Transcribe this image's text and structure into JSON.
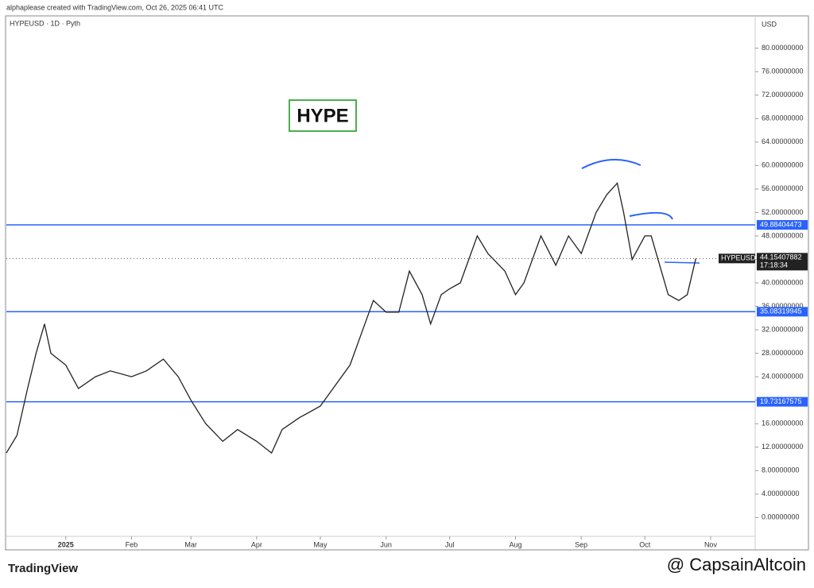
{
  "header": {
    "credit": "alphaplease created with TradingView.com, Oct 26, 2025 06:41 UTC",
    "brand": "TradingView",
    "watermark": "@ CapsainAltcoin"
  },
  "chart_data": {
    "type": "line",
    "title": "HYPEUSD · 1D · Pyth",
    "annotation": "HYPE",
    "y_unit": "USD",
    "x": [
      -28,
      -23,
      -18,
      -14,
      -10,
      -7,
      0,
      6,
      14,
      21,
      31,
      38,
      46,
      53,
      59,
      66,
      74,
      81,
      90,
      97,
      102,
      110,
      120,
      126,
      134,
      141,
      145,
      151,
      157,
      162,
      168,
      172,
      177,
      181,
      186,
      194,
      199,
      207,
      212,
      216,
      224,
      231,
      237,
      243,
      250,
      255,
      260,
      263,
      267,
      273,
      276,
      280,
      284,
      289,
      293,
      297
    ],
    "series": [
      {
        "name": "HYPEUSD",
        "color": "#222222",
        "values": [
          11,
          14,
          22,
          28,
          33,
          28,
          26,
          22,
          24,
          25,
          24,
          25,
          27,
          24,
          20,
          16,
          13,
          15,
          13,
          11,
          15,
          17,
          19,
          22,
          26,
          33,
          37,
          35,
          35,
          42,
          38,
          33,
          38,
          39,
          40,
          48,
          45,
          42,
          38,
          40,
          48,
          43,
          48,
          45,
          52,
          55,
          57,
          52,
          44,
          48,
          48,
          43,
          38,
          37,
          38,
          44.15407882
        ]
      }
    ],
    "last_price": {
      "label": "HYPEUSD",
      "value": 44.15407882,
      "countdown": "17:18:34"
    },
    "levels": [
      {
        "value": 49.88404473,
        "color": "#2962ff"
      },
      {
        "value": 35.08319945,
        "color": "#2962ff"
      },
      {
        "value": 19.73167575,
        "color": "#2962ff"
      }
    ],
    "xlim": [
      -28,
      325
    ],
    "ylim": [
      -3.2,
      85.5
    ],
    "xticks": [
      {
        "value": 0,
        "label": "2025"
      },
      {
        "value": 31,
        "label": "Feb"
      },
      {
        "value": 59,
        "label": "Mar"
      },
      {
        "value": 90,
        "label": "Apr"
      },
      {
        "value": 120,
        "label": "May"
      },
      {
        "value": 151,
        "label": "Jun"
      },
      {
        "value": 181,
        "label": "Jul"
      },
      {
        "value": 212,
        "label": "Aug"
      },
      {
        "value": 243,
        "label": "Sep"
      },
      {
        "value": 273,
        "label": "Oct"
      },
      {
        "value": 304,
        "label": "Nov"
      }
    ],
    "yticks": [
      {
        "value": 0,
        "label": "0.00000000"
      },
      {
        "value": 4,
        "label": "4.00000000"
      },
      {
        "value": 8,
        "label": "8.00000000"
      },
      {
        "value": 12,
        "label": "12.00000000"
      },
      {
        "value": 16,
        "label": "16.00000000"
      },
      {
        "value": 20,
        "label": "20.00000000"
      },
      {
        "value": 24,
        "label": "24.00000000"
      },
      {
        "value": 28,
        "label": "28.00000000"
      },
      {
        "value": 32,
        "label": "32.00000000"
      },
      {
        "value": 36,
        "label": "36.00000000"
      },
      {
        "value": 40,
        "label": "40.00000000"
      },
      {
        "value": 44,
        "label": "44.00000000"
      },
      {
        "value": 48,
        "label": "48.00000000"
      },
      {
        "value": 52,
        "label": "52.00000000"
      },
      {
        "value": 56,
        "label": "56.00000000"
      },
      {
        "value": 60,
        "label": "60.00000000"
      },
      {
        "value": 64,
        "label": "64.00000000"
      },
      {
        "value": 68,
        "label": "68.00000000"
      },
      {
        "value": 72,
        "label": "72.00000000"
      },
      {
        "value": 76,
        "label": "76.00000000"
      },
      {
        "value": 80,
        "label": "80.00000000"
      }
    ],
    "grid": false
  }
}
